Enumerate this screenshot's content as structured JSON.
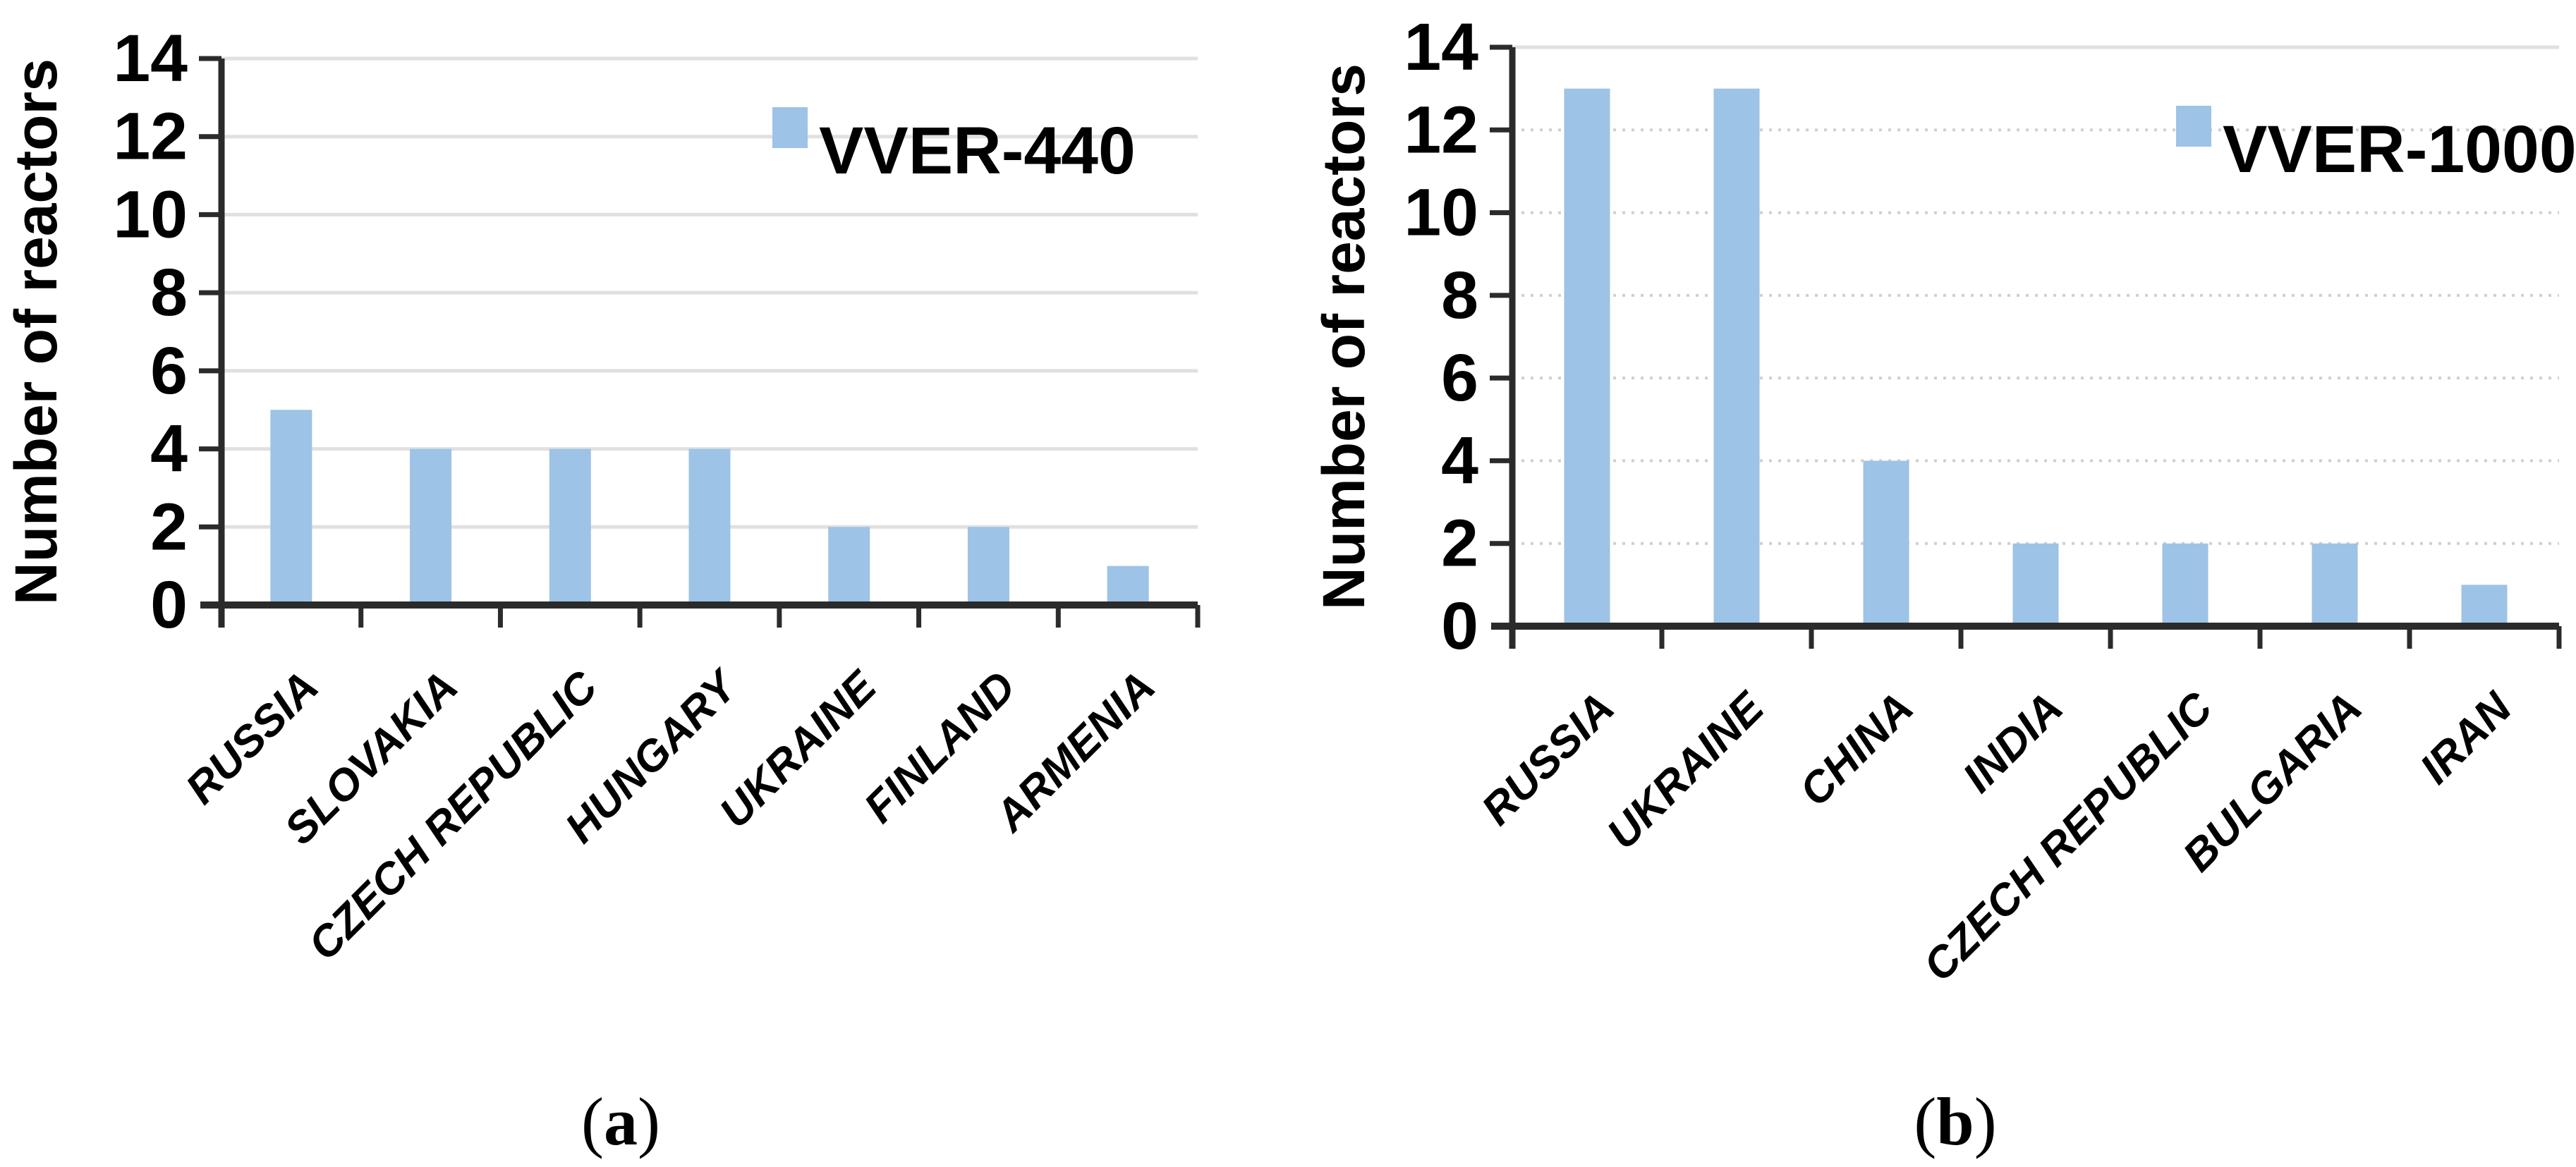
{
  "colors": {
    "bar_fill": "#9DC3E6",
    "grid_solid": "#E0E0E0",
    "grid_dotted": "#CFCFCF",
    "axis": "#2B2B2B",
    "text": "#000000",
    "background": "#FFFFFF"
  },
  "chart_data": [
    {
      "type": "bar",
      "panel": "a",
      "title": "",
      "legend": "VVER-440",
      "legend_position": "top-right",
      "xlabel": "",
      "ylabel": "Number of reactors",
      "categories": [
        "RUSSIA",
        "SLOVAKIA",
        "CZECH REPUBLIC",
        "HUNGARY",
        "UKRAINE",
        "FINLAND",
        "ARMENIA"
      ],
      "values": [
        5,
        4,
        4,
        4,
        2,
        2,
        1
      ],
      "ylim": [
        0,
        14
      ],
      "ytick_step": 2,
      "grid": "solid",
      "y_tick_labels": [
        "0",
        "2",
        "4",
        "6",
        "8",
        "10",
        "12",
        "14"
      ]
    },
    {
      "type": "bar",
      "panel": "b",
      "title": "",
      "legend": "VVER-1000",
      "legend_position": "top-right",
      "xlabel": "",
      "ylabel": "Number of reactors",
      "categories": [
        "RUSSIA",
        "UKRAINE",
        "CHINA",
        "INDIA",
        "CZECH REPUBLIC",
        "BULGARIA",
        "IRAN"
      ],
      "values": [
        13,
        13,
        4,
        2,
        2,
        2,
        1
      ],
      "ylim": [
        0,
        14
      ],
      "ytick_step": 2,
      "grid": "dotted",
      "y_tick_labels": [
        "0",
        "2",
        "4",
        "6",
        "8",
        "10",
        "12",
        "14"
      ]
    }
  ],
  "captions": [
    {
      "open": "(",
      "letter": "a",
      "close": ")"
    },
    {
      "open": "(",
      "letter": "b",
      "close": ")"
    }
  ]
}
